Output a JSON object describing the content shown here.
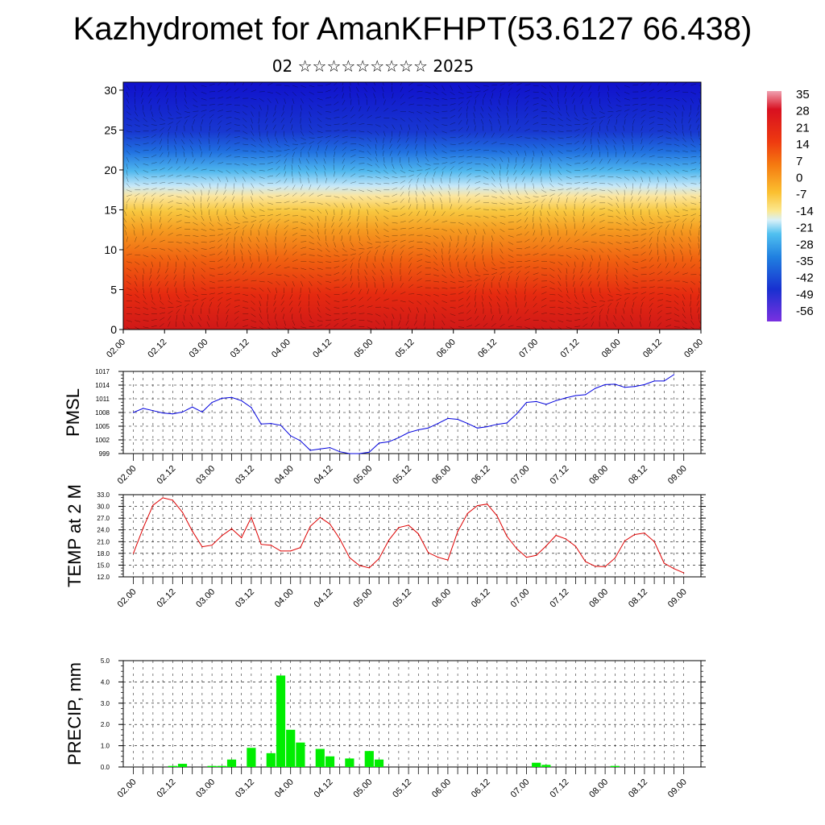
{
  "header": {
    "title": "Kazhydromet for AmanKFHPT(53.6127 66.438)",
    "subtitle": "02 ☆☆☆☆☆☆☆☆☆ 2025"
  },
  "colors": {
    "pmsl_line": "#0000dd",
    "temp_line": "#dd0000",
    "precip_bar": "#00ee00",
    "grid": "#000000"
  },
  "chart_data": [
    {
      "type": "heatmap",
      "title": "",
      "xlabel": "",
      "ylabel": "",
      "x_tick_labels": [
        "02.00",
        "02.12",
        "03.00",
        "03.12",
        "04.00",
        "04.12",
        "05.00",
        "05.12",
        "06.00",
        "06.12",
        "07.00",
        "07.12",
        "08.00",
        "08.12",
        "09.00"
      ],
      "y_ticks": [
        0,
        5,
        10,
        15,
        20,
        25,
        30
      ],
      "ylim": [
        0,
        31
      ],
      "colorbar": {
        "labels": [
          "35",
          "28",
          "21",
          "14",
          "7",
          "0",
          "-7",
          "-14",
          "-21",
          "-28",
          "-35",
          "-42",
          "-49",
          "-56"
        ],
        "range": [
          -60,
          38
        ]
      },
      "overlay": "wind vectors"
    },
    {
      "type": "line",
      "ylabel": "PMSL",
      "x_tick_labels": [
        "02.00",
        "02.12",
        "03.00",
        "03.12",
        "04.00",
        "04.12",
        "05.00",
        "05.12",
        "06.00",
        "06.12",
        "07.00",
        "07.12",
        "08.00",
        "08.12",
        "09.00"
      ],
      "y_tick_labels": [
        "1017",
        "1014",
        "1011",
        "1008",
        "1005",
        "1002",
        "999"
      ],
      "ylim": [
        999,
        1017
      ],
      "series": [
        {
          "values": [
            1008,
            1008.9,
            1008.4,
            1007.9,
            1007.7,
            1008.1,
            1009.2,
            1008.1,
            1010.2,
            1011.1,
            1011.3,
            1010.6,
            1009.1,
            1005.5,
            1005.6,
            1005.2,
            1002.9,
            1001.8,
            999.7,
            1000.0,
            1000.3,
            999.4,
            999.0,
            999.0,
            999.3,
            1001.3,
            1001.6,
            1002.5,
            1003.6,
            1004.2,
            1004.6,
            1005.6,
            1006.7,
            1006.5,
            1005.6,
            1004.6,
            1004.9,
            1005.4,
            1005.7,
            1007.7,
            1010.2,
            1010.4,
            1009.8,
            1010.6,
            1011.2,
            1011.7,
            1011.9,
            1013.3,
            1014.1,
            1014.2,
            1013.5,
            1013.7,
            1014.1,
            1014.9,
            1014.9,
            1016.3
          ]
        }
      ]
    },
    {
      "type": "line",
      "ylabel": "TEMP at 2 M",
      "x_tick_labels": [
        "02.00",
        "02.12",
        "03.00",
        "03.12",
        "04.00",
        "04.12",
        "05.00",
        "05.12",
        "06.00",
        "06.12",
        "07.00",
        "07.12",
        "08.00",
        "08.12",
        "09.00"
      ],
      "y_tick_labels": [
        "33.0",
        "30.0",
        "27.0",
        "24.0",
        "21.0",
        "18.0",
        "15.0",
        "12.0"
      ],
      "ylim": [
        12,
        33
      ],
      "series": [
        {
          "values": [
            18.0,
            24.5,
            30.3,
            32.2,
            31.6,
            28.5,
            23.7,
            19.7,
            20.1,
            22.5,
            24.3,
            22.0,
            27.2,
            20.3,
            20.1,
            18.6,
            18.6,
            19.5,
            24.9,
            27.2,
            25.5,
            21.7,
            16.9,
            14.9,
            14.3,
            16.7,
            21.4,
            24.6,
            25.2,
            23.0,
            18.2,
            17.0,
            16.3,
            23.6,
            28.2,
            30.2,
            30.6,
            27.6,
            22.4,
            19.2,
            17.0,
            17.5,
            19.9,
            22.6,
            21.7,
            19.8,
            15.9,
            14.7,
            14.6,
            16.8,
            21.2,
            22.8,
            23.2,
            21.0,
            15.5,
            14.1,
            13.0
          ]
        }
      ]
    },
    {
      "type": "bar",
      "ylabel": "PRECIP, mm",
      "x_tick_labels": [
        "02.00",
        "02.12",
        "03.00",
        "03.12",
        "04.00",
        "04.12",
        "05.00",
        "05.12",
        "06.00",
        "06.12",
        "07.00",
        "07.12",
        "08.00",
        "08.12",
        "09.00"
      ],
      "y_tick_labels": [
        "5.0",
        "4.0",
        "3.0",
        "2.0",
        "1.0",
        "0.0"
      ],
      "ylim": [
        0,
        5
      ],
      "series": [
        {
          "values": [
            0,
            0,
            0,
            0,
            0.05,
            0.15,
            0,
            0,
            0.05,
            0.05,
            0.35,
            0,
            0.9,
            0,
            0.65,
            4.3,
            1.75,
            1.15,
            0,
            0.85,
            0.5,
            0,
            0.4,
            0,
            0.75,
            0.35,
            0,
            0,
            0,
            0,
            0,
            0,
            0,
            0,
            0,
            0,
            0,
            0,
            0,
            0,
            0,
            0.2,
            0.1,
            0,
            0,
            0,
            0,
            0,
            0,
            0.05,
            0,
            0,
            0,
            0,
            0,
            0
          ]
        }
      ]
    }
  ]
}
